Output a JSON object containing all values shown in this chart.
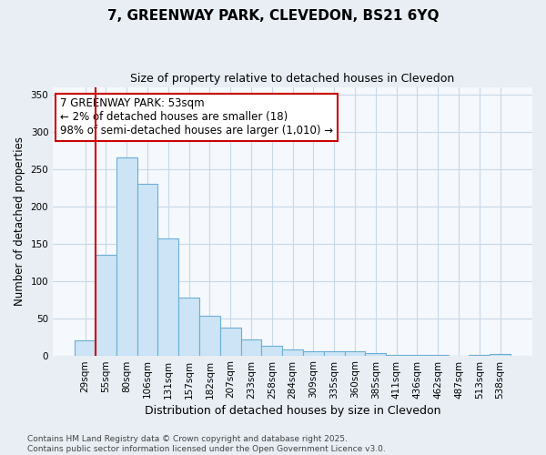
{
  "title_line1": "7, GREENWAY PARK, CLEVEDON, BS21 6YQ",
  "title_line2": "Size of property relative to detached houses in Clevedon",
  "xlabel": "Distribution of detached houses by size in Clevedon",
  "ylabel": "Number of detached properties",
  "bar_labels": [
    "29sqm",
    "55sqm",
    "80sqm",
    "106sqm",
    "131sqm",
    "157sqm",
    "182sqm",
    "207sqm",
    "233sqm",
    "258sqm",
    "284sqm",
    "309sqm",
    "335sqm",
    "360sqm",
    "385sqm",
    "411sqm",
    "436sqm",
    "462sqm",
    "487sqm",
    "513sqm",
    "538sqm"
  ],
  "bar_heights": [
    20,
    135,
    265,
    230,
    157,
    78,
    53,
    37,
    22,
    13,
    8,
    5,
    5,
    5,
    3,
    1,
    1,
    1,
    0,
    1,
    2
  ],
  "bar_color": "#cce4f5",
  "bar_edge_color": "#6aaed6",
  "ylim": [
    0,
    360
  ],
  "yticks": [
    0,
    50,
    100,
    150,
    200,
    250,
    300,
    350
  ],
  "marker_index": 1,
  "marker_color": "#cc0000",
  "annotation_text": "7 GREENWAY PARK: 53sqm\n← 2% of detached houses are smaller (18)\n98% of semi-detached houses are larger (1,010) →",
  "annotation_box_color": "#cc0000",
  "footer_line1": "Contains HM Land Registry data © Crown copyright and database right 2025.",
  "footer_line2": "Contains public sector information licensed under the Open Government Licence v3.0.",
  "background_color": "#e8eef4",
  "plot_background": "#f5f8fc",
  "grid_color": "#c8d8e8",
  "title_fontsize": 11,
  "subtitle_fontsize": 9,
  "tick_fontsize": 7.5,
  "ylabel_fontsize": 8.5,
  "xlabel_fontsize": 9,
  "annotation_fontsize": 8.5,
  "footer_fontsize": 6.5
}
